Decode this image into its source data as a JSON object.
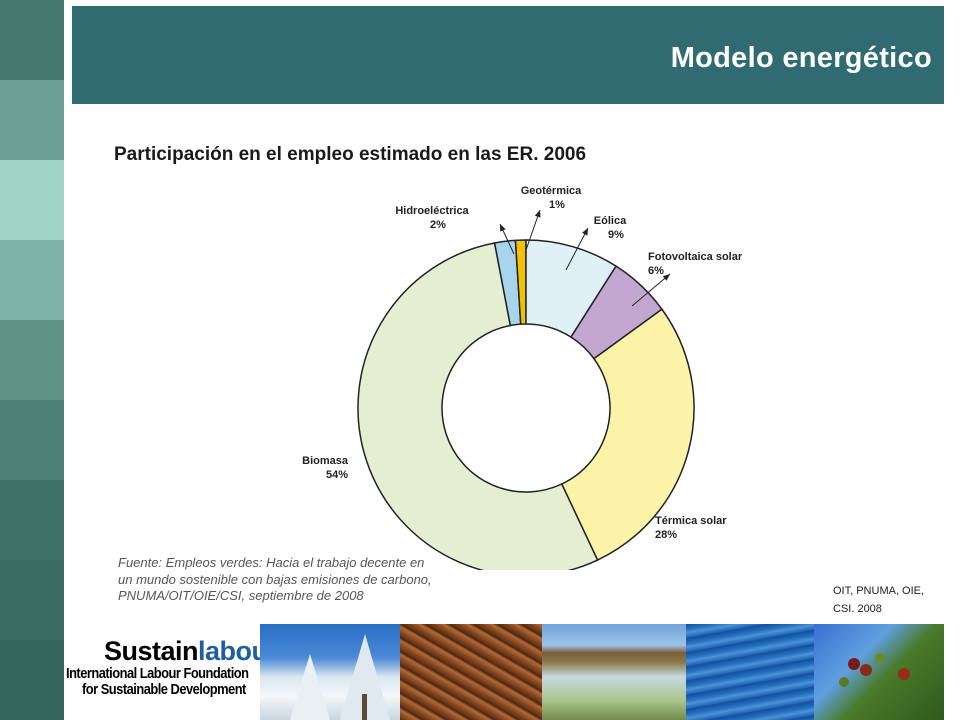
{
  "header": {
    "title": "Modelo energético"
  },
  "chart_data": {
    "type": "pie",
    "variant": "donut",
    "title": "Participación en el empleo estimado en las ER. 2006",
    "categories": [
      "Hidroeléctrica",
      "Geotérmica",
      "Eólica",
      "Fotovoltaica solar",
      "Térmica solar",
      "Biomasa"
    ],
    "values": [
      2,
      1,
      9,
      6,
      28,
      54
    ],
    "value_labels": [
      "2%",
      "1%",
      "9%",
      "6%",
      "28%",
      "54%"
    ],
    "colors": [
      "#a8d4ec",
      "#f2c200",
      "#dff0f6",
      "#c3a7d1",
      "#fbf4a8",
      "#e4efd2"
    ]
  },
  "source_note": {
    "line1": "Fuente:  Empleos verdes: Hacia el trabajo decente en",
    "line2": "un mundo sostenible con bajas emisiones de carbono,",
    "line3": "PNUMA/OIT/OIE/CSI, septiembre de 2008"
  },
  "citation": {
    "line1": "OIT, PNUMA, OIE,",
    "line2": "CSI. 2008"
  },
  "logo": {
    "word_main": "Sustain",
    "word_accent": "labour",
    "line1": "International Labour Foundation",
    "line2": "for Sustainable Development"
  },
  "colors": {
    "header_bg": "#2f6b70",
    "stripe_dark": "#3d6f64",
    "stripe_light": "#9fd3c4"
  }
}
